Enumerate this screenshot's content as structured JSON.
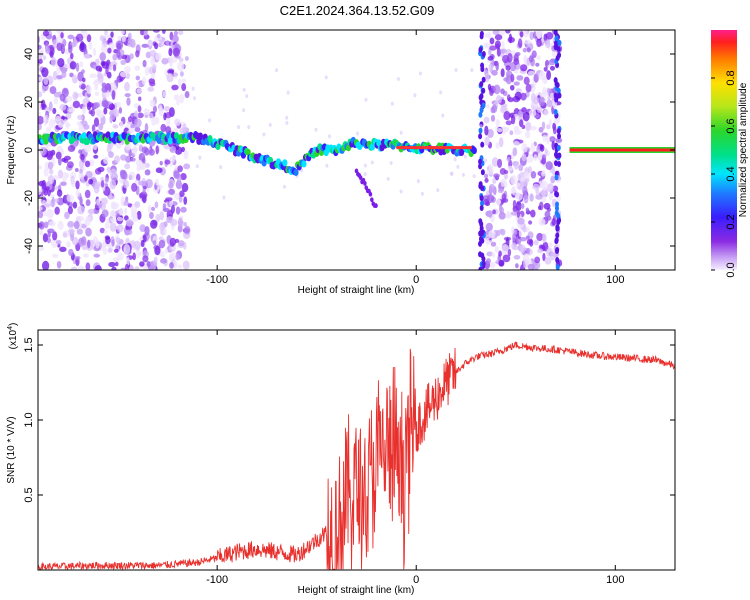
{
  "title": "C2E1.2024.364.13.52.G09",
  "chart_data": [
    {
      "type": "heatmap",
      "xlabel": "Height of straight line (km)",
      "ylabel": "Frequency (Hz)",
      "xlim": [
        -190,
        130
      ],
      "ylim": [
        -50,
        50
      ],
      "xticks": [
        -100,
        0,
        100
      ],
      "yticks": [
        -40,
        -20,
        0,
        20,
        40
      ],
      "colorbar": {
        "label": "Normalized spectral amplitude",
        "ticks": [
          0.0,
          0.2,
          0.4,
          0.6,
          0.8
        ],
        "range": [
          0,
          1
        ]
      },
      "ridge": [
        {
          "x": -190,
          "y": 5
        },
        {
          "x": -150,
          "y": 5
        },
        {
          "x": -120,
          "y": 5
        },
        {
          "x": -110,
          "y": 5
        },
        {
          "x": -100,
          "y": 3
        },
        {
          "x": -90,
          "y": 0
        },
        {
          "x": -80,
          "y": -3
        },
        {
          "x": -70,
          "y": -6
        },
        {
          "x": -60,
          "y": -8
        },
        {
          "x": -50,
          "y": 0
        },
        {
          "x": -40,
          "y": 0
        },
        {
          "x": -30,
          "y": 3
        },
        {
          "x": -20,
          "y": 2
        },
        {
          "x": -10,
          "y": 2
        },
        {
          "x": 0,
          "y": 1
        },
        {
          "x": 20,
          "y": 0
        },
        {
          "x": 30,
          "y": 0
        }
      ],
      "noise_bands": [
        {
          "x_start": -190,
          "x_end": -115
        },
        {
          "x_start": 35,
          "x_end": 72
        }
      ],
      "tone": {
        "x_start": 77,
        "x_end": 130,
        "y": 0
      }
    },
    {
      "type": "line",
      "xlabel": "Height of straight line (km)",
      "ylabel": "SNR (10 * V/V)",
      "yscale_label": "(x10",
      "yscale_exp": "4",
      "xlim": [
        -190,
        130
      ],
      "ylim": [
        0,
        1.6
      ],
      "xticks": [
        -100,
        0,
        100
      ],
      "yticks": [
        0.5,
        1.0,
        1.5
      ],
      "series": [
        {
          "color": "#e8302d",
          "x": [
            -190,
            -160,
            -130,
            -110,
            -100,
            -90,
            -80,
            -70,
            -60,
            -50,
            -40,
            -35,
            -30,
            -25,
            -20,
            -15,
            -10,
            -8,
            -5,
            -3,
            0,
            5,
            10,
            15,
            20,
            25,
            30,
            40,
            50,
            60,
            70,
            80,
            90,
            100,
            110,
            120,
            130
          ],
          "y": [
            0.02,
            0.03,
            0.03,
            0.05,
            0.08,
            0.12,
            0.14,
            0.12,
            0.1,
            0.2,
            0.3,
            0.45,
            0.55,
            0.5,
            0.7,
            0.8,
            0.75,
            0.65,
            0.7,
            0.9,
            0.95,
            1.05,
            1.15,
            1.25,
            1.32,
            1.38,
            1.42,
            1.45,
            1.5,
            1.48,
            1.47,
            1.45,
            1.43,
            1.42,
            1.41,
            1.4,
            1.36
          ]
        }
      ]
    }
  ]
}
